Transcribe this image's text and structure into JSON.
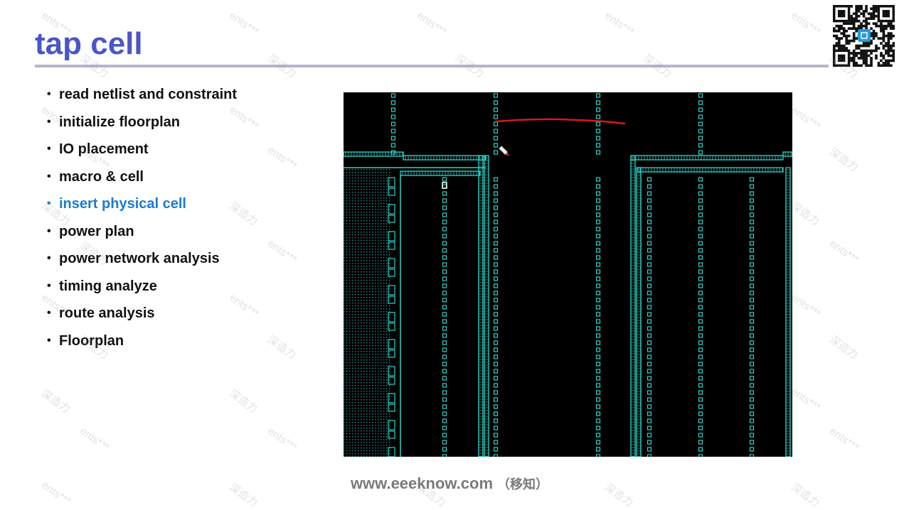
{
  "slide": {
    "title": "tap cell"
  },
  "bullets": [
    {
      "text": "read netlist and constraint",
      "active": false
    },
    {
      "text": "initialize floorplan",
      "active": false
    },
    {
      "text": "IO placement",
      "active": false
    },
    {
      "text": "macro & cell",
      "active": false
    },
    {
      "text": "insert physical cell",
      "active": true
    },
    {
      "text": "power plan",
      "active": false
    },
    {
      "text": "power network analysis",
      "active": false
    },
    {
      "text": "timing analyze",
      "active": false
    },
    {
      "text": "route analysis",
      "active": false
    },
    {
      "text": "Floorplan",
      "active": false
    }
  ],
  "footer": {
    "url": "www.eeeknow.com",
    "cn": "（移知）"
  },
  "watermark": {
    "text_a": "ents***",
    "text_b": "深造力"
  },
  "colors": {
    "title": "#4a55c8",
    "active_bullet": "#1b7bd1",
    "layout_background": "#000000",
    "layout_geometry": "#2ad4c8",
    "annotation": "#d81818"
  },
  "icons": {
    "qr": "qr-code-icon",
    "cursor": "pen-cursor-icon"
  }
}
